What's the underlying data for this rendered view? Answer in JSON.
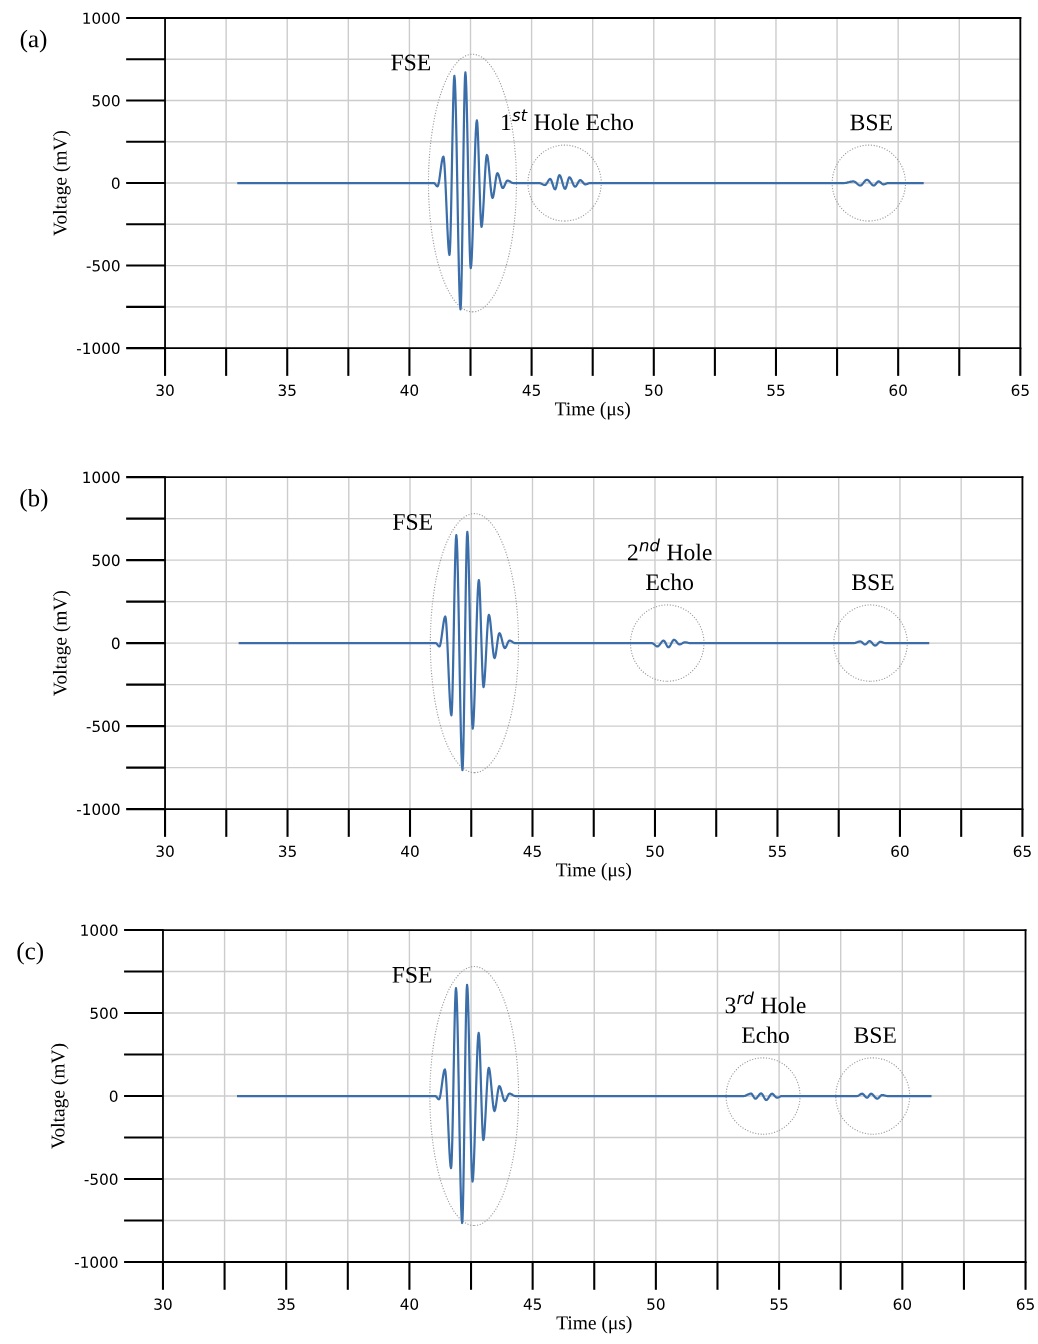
{
  "chart_data": [
    {
      "type": "line",
      "title": "(a)",
      "xlabel": "Time (μs)",
      "ylabel": "Voltage (mV)",
      "xlim": [
        30,
        65
      ],
      "ylim": [
        -1000,
        1000
      ],
      "xticks": [
        30,
        {
          "value": 32.5,
          "label": null
        },
        35,
        {
          "value": 37.5,
          "label": null
        },
        40,
        {
          "value": 42.5,
          "label": null
        },
        45,
        {
          "value": 47.5,
          "label": null
        },
        50,
        {
          "value": 52.5,
          "label": null
        },
        55,
        {
          "value": 57.5,
          "label": null
        },
        60,
        {
          "value": 62.5,
          "label": null
        },
        65
      ],
      "yticks": [
        -1000,
        {
          "value": -750,
          "label": null
        },
        -500,
        {
          "value": -250,
          "label": null
        },
        0,
        {
          "value": 250,
          "label": null
        },
        500,
        {
          "value": 750,
          "label": null
        },
        1000
      ],
      "grid": true,
      "legend": false,
      "series": [
        {
          "color": "#3b6ea8",
          "x": [
            33,
            41.0,
            41.15,
            41.39,
            41.64,
            41.84,
            42.09,
            42.29,
            42.51,
            42.76,
            42.95,
            43.17,
            43.4,
            43.6,
            43.82,
            44.01,
            44.26,
            45.3,
            45.55,
            45.76,
            45.96,
            46.14,
            46.37,
            46.55,
            46.78,
            46.99,
            47.2,
            47.4,
            57.77,
            58.17,
            58.45,
            58.72,
            59.0,
            59.2,
            59.4,
            59.6,
            61.0
          ],
          "values": [
            0,
            0,
            -20,
            160,
            -435,
            650,
            -765,
            670,
            -515,
            380,
            -265,
            170,
            -90,
            60,
            -30,
            15,
            0,
            0,
            -12,
            25,
            -38,
            48,
            -35,
            35,
            -22,
            18,
            -8,
            0,
            0,
            10,
            -15,
            20,
            -15,
            10,
            -8,
            0,
            0
          ]
        }
      ],
      "annotations": [
        "FSE",
        {
          "text": "1$^{st}$ Hole Echo",
          "x": 46.35,
          "y": 0
        },
        {
          "text": "BSE",
          "x": 58.8,
          "y": 0
        }
      ]
    },
    {
      "type": "line",
      "title": "(b)",
      "xlabel": "Time (μs)",
      "ylabel": "Voltage (mV)",
      "xlim": [
        30,
        65
      ],
      "ylim": [
        -1000,
        1000
      ],
      "xticks": [
        30,
        {
          "value": 32.5,
          "label": null
        },
        35,
        {
          "value": 37.5,
          "label": null
        },
        40,
        {
          "value": 42.5,
          "label": null
        },
        45,
        {
          "value": 47.5,
          "label": null
        },
        50,
        {
          "value": 52.5,
          "label": null
        },
        55,
        {
          "value": 57.5,
          "label": null
        },
        60,
        {
          "value": 62.5,
          "label": null
        },
        65
      ],
      "yticks": [
        -1000,
        {
          "value": -750,
          "label": null
        },
        -500,
        {
          "value": -250,
          "label": null
        },
        0,
        {
          "value": 250,
          "label": null
        },
        500,
        {
          "value": 750,
          "label": null
        },
        1000
      ],
      "grid": true,
      "legend": false,
      "series": [
        {
          "color": "#3b6ea8",
          "x": [
            33.05,
            41.05,
            41.2,
            41.44,
            41.69,
            41.89,
            42.14,
            42.34,
            42.56,
            42.81,
            43.0,
            43.22,
            43.45,
            43.65,
            43.87,
            44.06,
            44.3,
            49.87,
            50.1,
            50.35,
            50.55,
            50.78,
            51.0,
            51.23,
            51.43,
            58.11,
            58.38,
            58.58,
            58.76,
            58.99,
            59.2,
            59.4,
            61.15
          ],
          "values": [
            0,
            0,
            -20,
            160,
            -435,
            650,
            -765,
            670,
            -515,
            380,
            -265,
            170,
            -90,
            60,
            -30,
            15,
            0,
            0,
            -20,
            15,
            -25,
            20,
            -8,
            5,
            0,
            0,
            10,
            -8,
            12,
            -15,
            8,
            0,
            0
          ]
        }
      ],
      "annotations": [
        "FSE",
        {
          "text": "2$^{nd}$ Hole\nEcho",
          "x": 50.5,
          "y": 0
        },
        {
          "text": "BSE",
          "x": 58.8,
          "y": 0
        }
      ]
    },
    {
      "type": "line",
      "title": "(c)",
      "xlabel": "Time (μs)",
      "ylabel": "Voltage (mV)",
      "xlim": [
        30,
        65
      ],
      "ylim": [
        -1000,
        1000
      ],
      "xticks": [
        30,
        {
          "value": 32.5,
          "label": null
        },
        35,
        {
          "value": 37.5,
          "label": null
        },
        40,
        {
          "value": 42.5,
          "label": null
        },
        45,
        {
          "value": 47.5,
          "label": null
        },
        50,
        {
          "value": 52.5,
          "label": null
        },
        55,
        {
          "value": 57.5,
          "label": null
        },
        60,
        {
          "value": 62.5,
          "label": null
        },
        65
      ],
      "yticks": [
        -1000,
        {
          "value": -750,
          "label": null
        },
        -500,
        {
          "value": -250,
          "label": null
        },
        0,
        {
          "value": 250,
          "label": null
        },
        500,
        {
          "value": 750,
          "label": null
        },
        1000
      ],
      "grid": true,
      "legend": false,
      "series": [
        {
          "color": "#3b6ea8",
          "x": [
            33.05,
            41.05,
            41.2,
            41.44,
            41.69,
            41.89,
            42.14,
            42.34,
            42.56,
            42.81,
            43.0,
            43.22,
            43.45,
            43.65,
            43.87,
            44.06,
            44.3,
            53.56,
            53.86,
            54.04,
            54.27,
            54.48,
            54.71,
            54.92,
            55.12,
            58.16,
            58.37,
            58.57,
            58.73,
            58.98,
            59.18,
            59.39,
            61.14
          ],
          "values": [
            0,
            0,
            -20,
            160,
            -435,
            650,
            -765,
            670,
            -515,
            380,
            -265,
            170,
            -90,
            60,
            -30,
            15,
            0,
            0,
            15,
            -16,
            16,
            -24,
            14,
            -10,
            0,
            0,
            14,
            -10,
            14,
            -16,
            6,
            0,
            0
          ]
        }
      ],
      "annotations": [
        "FSE",
        {
          "text": "3$^{rd}$ Hole\nEcho",
          "x": 54.35,
          "y": 0
        },
        {
          "text": "BSE",
          "x": 58.8,
          "y": 0
        }
      ]
    }
  ]
}
